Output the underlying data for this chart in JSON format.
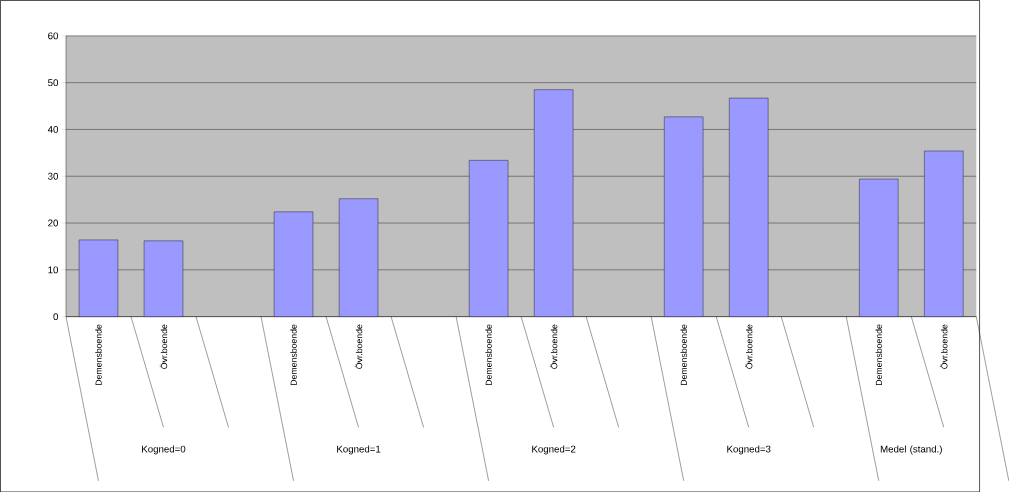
{
  "chart_data": {
    "type": "bar",
    "categories": [
      "Demensboende",
      "Övr.boende",
      null,
      "Demensboende",
      "Övr.boende",
      null,
      "Demensboende",
      "Övr.boende",
      null,
      "Demensboende",
      "Övr.boende",
      null,
      "Demensboende",
      "Övr.boende"
    ],
    "values": [
      16.4,
      16.2,
      null,
      22.4,
      25.2,
      null,
      33.4,
      48.5,
      null,
      42.7,
      46.7,
      null,
      29.4,
      35.4
    ],
    "color": "#9999ff",
    "ylim": [
      0,
      60
    ],
    "yticks": [
      0,
      10,
      20,
      30,
      40,
      50,
      60
    ],
    "grid": "y",
    "annotations": [
      "Kogned=0",
      "Kogned=1",
      "Kogned=2",
      "Kogned=3",
      "Medel (stand.)"
    ]
  }
}
